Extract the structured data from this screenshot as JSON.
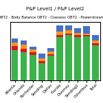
{
  "chart_data": {
    "type": "bar",
    "stacked": true,
    "title": "P&P Level1 / P&P Level2",
    "categories": [
      "Atlanta",
      "Orlando",
      "Rochester",
      "Sending",
      "Dallas",
      "Florida",
      "Duomey",
      "Sending2",
      "Columbus",
      "Total"
    ],
    "series": [
      {
        "color": "#3cb34a",
        "values": [
          62,
          58,
          52,
          35,
          50,
          88,
          92,
          88,
          90,
          72
        ]
      },
      {
        "color": "#d7191c",
        "values": [
          8,
          7,
          6,
          5,
          4,
          5,
          4,
          4,
          2,
          4
        ]
      },
      {
        "color": "#f79420",
        "values": [
          7,
          8,
          5,
          5,
          5,
          7,
          6,
          5,
          4,
          5
        ]
      },
      {
        "color": "#4472c4",
        "values": [
          9,
          9,
          6,
          10,
          7,
          12,
          10,
          10,
          15,
          12
        ]
      }
    ],
    "annotations": [
      "OBT2 - Body Balance",
      "OBT2 - Classess",
      "OBT2 - Powerstream"
    ],
    "ylim": [
      0,
      120
    ],
    "tick_labels": "x",
    "grid": false
  }
}
